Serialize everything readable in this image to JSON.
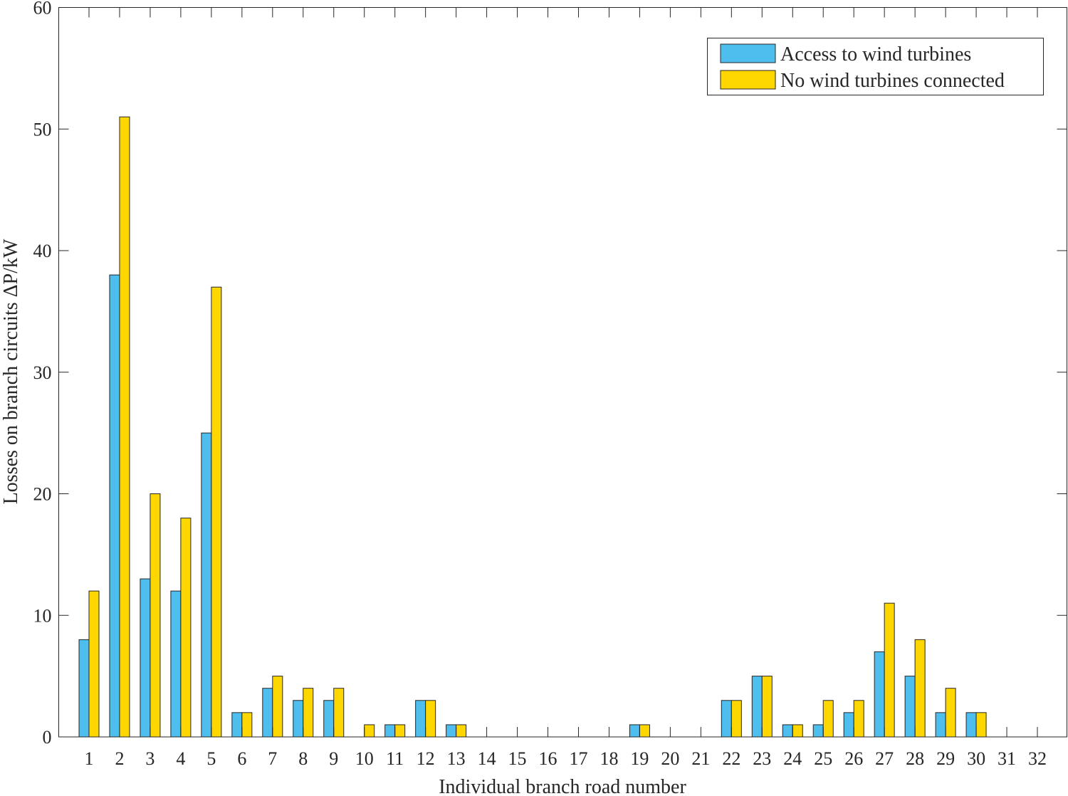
{
  "chart_data": {
    "type": "bar",
    "title": "",
    "xlabel": "Individual branch road number",
    "ylabel": "Losses on branch circuits ΔP/kW",
    "ylim": [
      0,
      60
    ],
    "yticks": [
      0,
      10,
      20,
      30,
      40,
      50,
      60
    ],
    "categories": [
      "1",
      "2",
      "3",
      "4",
      "5",
      "6",
      "7",
      "8",
      "9",
      "10",
      "11",
      "12",
      "13",
      "14",
      "15",
      "16",
      "17",
      "18",
      "19",
      "20",
      "21",
      "22",
      "23",
      "24",
      "25",
      "26",
      "27",
      "28",
      "29",
      "30",
      "31",
      "32"
    ],
    "series": [
      {
        "name": "Access to wind turbines",
        "color": "#4DBEEE",
        "values": [
          8,
          38,
          13,
          12,
          25,
          2,
          4,
          3,
          3,
          0,
          1,
          3,
          1,
          0,
          0,
          0,
          0,
          0,
          1,
          0,
          0,
          3,
          5,
          1,
          1,
          2,
          7,
          5,
          2,
          2,
          0,
          0
        ]
      },
      {
        "name": "No wind turbines connected",
        "color": "#FFD700",
        "values": [
          12,
          51,
          20,
          18,
          37,
          2,
          5,
          4,
          4,
          1,
          1,
          3,
          1,
          0,
          0,
          0,
          0,
          0,
          1,
          0,
          0,
          3,
          5,
          1,
          3,
          3,
          11,
          8,
          4,
          2,
          0,
          0
        ]
      }
    ],
    "legend": "top-right",
    "grid": false
  }
}
